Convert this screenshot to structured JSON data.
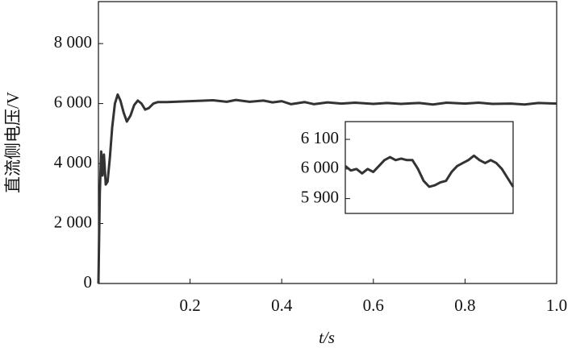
{
  "chart_data": [
    {
      "type": "line",
      "xlabel": "t/s",
      "ylabel": "直流侧电压/V",
      "xlim": [
        0,
        1
      ],
      "ylim": [
        0,
        9400
      ],
      "xticks": [
        0.2,
        0.4,
        0.6,
        0.8,
        {
          "value": 1,
          "label": "1.0"
        }
      ],
      "yticks": [
        0,
        {
          "value": 2000,
          "label": "2 000"
        },
        {
          "value": 4000,
          "label": "4 000"
        },
        {
          "value": 6000,
          "label": "6 000"
        },
        {
          "value": 8000,
          "label": "8 000"
        }
      ],
      "series": [
        {
          "color": "#333333",
          "x": [
            0,
            0.003,
            0.006,
            0.009,
            0.012,
            0.016,
            0.02,
            0.025,
            0.03,
            0.036,
            0.042,
            0.048,
            0.055,
            0.062,
            0.07,
            0.078,
            0.086,
            0.094,
            0.102,
            0.11,
            0.12,
            0.13,
            0.15,
            0.2,
            0.25,
            0.28,
            0.3,
            0.33,
            0.36,
            0.38,
            0.4,
            0.42,
            0.45,
            0.47,
            0.5,
            0.53,
            0.56,
            0.6,
            0.63,
            0.66,
            0.7,
            0.73,
            0.76,
            0.8,
            0.83,
            0.86,
            0.9,
            0.93,
            0.96,
            1.0
          ],
          "values": [
            0,
            3000,
            4400,
            3600,
            4300,
            3300,
            3400,
            4200,
            5200,
            6000,
            6300,
            6100,
            5700,
            5400,
            5600,
            5950,
            6100,
            6000,
            5800,
            5850,
            6000,
            6050,
            6050,
            6080,
            6110,
            6060,
            6120,
            6060,
            6100,
            6040,
            6080,
            5980,
            6050,
            5980,
            6040,
            6000,
            6030,
            5990,
            6020,
            5990,
            6020,
            5970,
            6030,
            6000,
            6030,
            5990,
            6000,
            5970,
            6020,
            6000
          ]
        }
      ]
    },
    {
      "type": "line",
      "ylim": [
        5850,
        6160
      ],
      "yticks": [
        {
          "value": 5900,
          "label": "5 900"
        },
        {
          "value": 6000,
          "label": "6 000"
        },
        {
          "value": 6100,
          "label": "6 100"
        }
      ],
      "series": [
        {
          "color": "#333333",
          "values": [
            6010,
            5995,
            6000,
            5985,
            6000,
            5990,
            6010,
            6030,
            6040,
            6030,
            6035,
            6030,
            6030,
            6000,
            5960,
            5940,
            5945,
            5955,
            5960,
            5990,
            6010,
            6020,
            6030,
            6045,
            6030,
            6020,
            6030,
            6020,
            6000,
            5970,
            5940
          ]
        }
      ]
    }
  ]
}
